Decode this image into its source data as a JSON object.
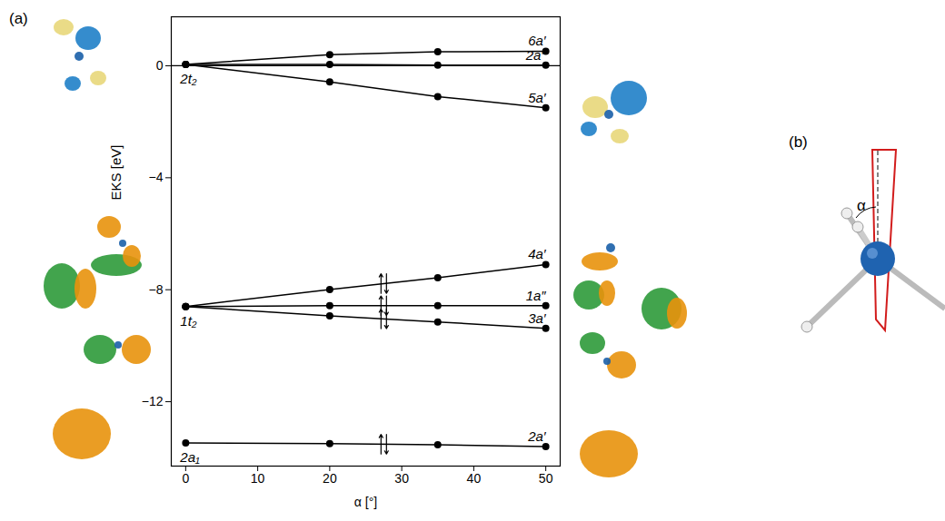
{
  "chart_data": {
    "type": "line",
    "xlabel": "α [°]",
    "ylabel": "EKS [eV]",
    "panel_labels": [
      "(a)",
      "(b)"
    ],
    "angle_label": "α",
    "color": "#000000",
    "marker": "circle",
    "x": [
      0,
      20,
      35,
      50
    ],
    "xlim": [
      -2,
      52
    ],
    "xticks": [
      0,
      10,
      20,
      30,
      40,
      50
    ],
    "ylim": [
      -14.3,
      1.75
    ],
    "yticks": [
      -12,
      -8,
      -4,
      0
    ],
    "hline": 0,
    "series": [
      {
        "name": "6a′",
        "values": [
          0.05,
          0.4,
          0.5,
          0.52
        ],
        "electrons": 0
      },
      {
        "name": "2a″",
        "values": [
          0.05,
          0.05,
          0.02,
          0.02
        ],
        "electrons": 0
      },
      {
        "name": "5a′",
        "values": [
          0.05,
          -0.58,
          -1.1,
          -1.5
        ],
        "electrons": 0
      },
      {
        "name": "4a′",
        "values": [
          -8.6,
          -7.99,
          -7.57,
          -7.1
        ],
        "electrons": 2
      },
      {
        "name": "1a″",
        "values": [
          -8.6,
          -8.57,
          -8.57,
          -8.57
        ],
        "electrons": 2
      },
      {
        "name": "3a′",
        "values": [
          -8.6,
          -8.93,
          -9.15,
          -9.38
        ],
        "electrons": 2
      },
      {
        "name": "2a′",
        "values": [
          -13.47,
          -13.5,
          -13.54,
          -13.6
        ],
        "electrons": 2
      }
    ],
    "annotations": [
      {
        "text": "2t₂",
        "x": 0,
        "y": 0.05
      },
      {
        "text": "1t₂",
        "x": 0,
        "y": -8.6
      },
      {
        "text": "2a₁",
        "x": 0,
        "y": -13.47
      }
    ]
  }
}
